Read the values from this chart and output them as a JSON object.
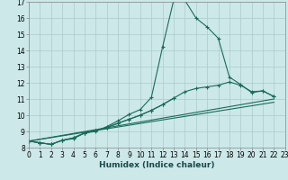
{
  "xlabel": "Humidex (Indice chaleur)",
  "background_color": "#cce8e8",
  "grid_color": "#aacccc",
  "line_color": "#1a6b5a",
  "xlim": [
    0,
    23
  ],
  "ylim": [
    8,
    17
  ],
  "xtick_labels": [
    "0",
    "1",
    "2",
    "3",
    "4",
    "5",
    "6",
    "7",
    "8",
    "9",
    "10",
    "11",
    "12",
    "13",
    "14",
    "15",
    "16",
    "17",
    "18",
    "19",
    "20",
    "21",
    "22",
    "23"
  ],
  "yticks": [
    8,
    9,
    10,
    11,
    12,
    13,
    14,
    15,
    16,
    17
  ],
  "series": [
    {
      "x": [
        0,
        1,
        2,
        3,
        4,
        5,
        6,
        7,
        8,
        9,
        10,
        11,
        12,
        13,
        14,
        15,
        16,
        17,
        18,
        19,
        20,
        21,
        22
      ],
      "y": [
        8.4,
        8.3,
        8.2,
        8.45,
        8.55,
        8.9,
        9.0,
        9.3,
        9.65,
        10.05,
        10.35,
        11.1,
        14.2,
        17.1,
        17.1,
        16.0,
        15.45,
        14.75,
        12.35,
        11.9,
        11.4,
        11.5,
        11.15
      ]
    },
    {
      "x": [
        0,
        1,
        2,
        3,
        4,
        5,
        6,
        7,
        8,
        9,
        10,
        11,
        12,
        13,
        14,
        15,
        16,
        17,
        18,
        19,
        20,
        21,
        22
      ],
      "y": [
        8.4,
        8.3,
        8.2,
        8.45,
        8.6,
        8.9,
        9.05,
        9.25,
        9.5,
        9.75,
        10.0,
        10.3,
        10.65,
        11.05,
        11.45,
        11.65,
        11.75,
        11.85,
        12.05,
        11.85,
        11.45,
        11.5,
        11.15
      ]
    },
    {
      "x": [
        0,
        22
      ],
      "y": [
        8.4,
        11.0
      ]
    },
    {
      "x": [
        0,
        22
      ],
      "y": [
        8.4,
        10.8
      ]
    },
    {
      "x": [
        0,
        1,
        2,
        3,
        4,
        5,
        6,
        7,
        8,
        9,
        10,
        11,
        12,
        13
      ],
      "y": [
        8.4,
        8.3,
        8.2,
        8.45,
        8.6,
        8.9,
        9.05,
        9.25,
        9.5,
        9.75,
        10.0,
        10.3,
        10.65,
        11.05
      ]
    }
  ]
}
